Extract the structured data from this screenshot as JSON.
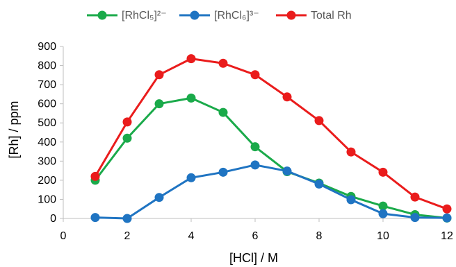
{
  "chart_data": {
    "type": "line",
    "title": "",
    "xlabel": "[HCl] / M",
    "ylabel": "[Rh] / ppm",
    "xlim": [
      0,
      12
    ],
    "ylim": [
      0,
      900
    ],
    "x_ticks": [
      "0",
      "2",
      "4",
      "6",
      "8",
      "10",
      "12"
    ],
    "y_ticks": [
      "0",
      "100",
      "200",
      "300",
      "400",
      "500",
      "600",
      "700",
      "800",
      "900"
    ],
    "grid": false,
    "legend_position": "top",
    "series": [
      {
        "name": "[RhCl₅]²⁻",
        "color": "#1aaa4a",
        "x": [
          1,
          2,
          3,
          4,
          5,
          6,
          7,
          8,
          9,
          10,
          11,
          12
        ],
        "y": [
          200,
          420,
          600,
          630,
          555,
          375,
          245,
          185,
          115,
          65,
          20,
          2
        ]
      },
      {
        "name": "[RhCl₆]³⁻",
        "color": "#1f74c2",
        "x": [
          1,
          2,
          3,
          4,
          5,
          6,
          7,
          8,
          9,
          10,
          11,
          12
        ],
        "y": [
          5,
          0,
          110,
          213,
          242,
          280,
          248,
          180,
          98,
          25,
          5,
          3
        ]
      },
      {
        "name": "Total Rh",
        "color": "#ea1c1c",
        "x": [
          1,
          2,
          3,
          4,
          5,
          6,
          7,
          8,
          9,
          10,
          11,
          12
        ],
        "y": [
          220,
          505,
          752,
          836,
          812,
          752,
          636,
          512,
          348,
          242,
          112,
          50
        ]
      }
    ]
  }
}
